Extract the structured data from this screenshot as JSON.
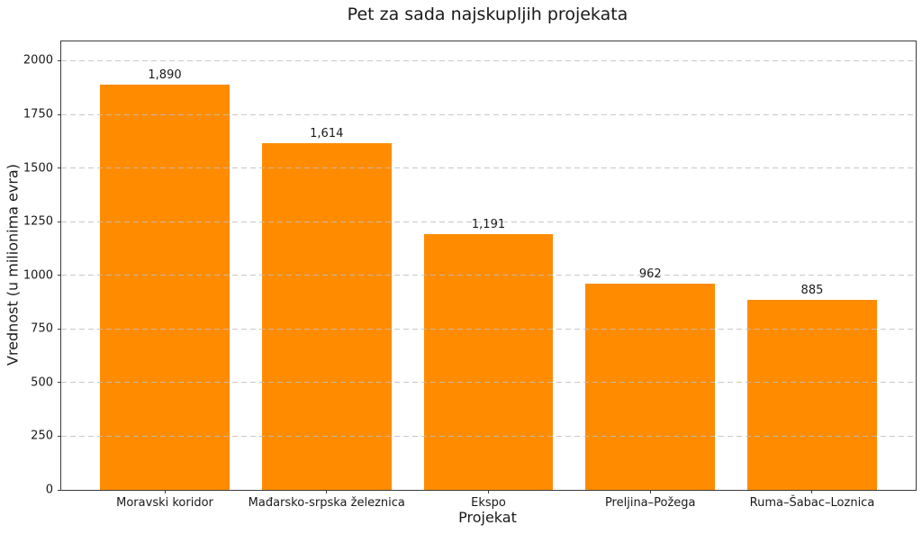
{
  "figure": {
    "title": "Pet za sada najskupljih projekata"
  },
  "chart_data": {
    "type": "bar",
    "title": "Pet za sada najskupljih projekata",
    "xlabel": "Projekat",
    "ylabel": "Vrednost (u milionima evra)",
    "categories": [
      "Moravski koridor",
      "Mađarsko-srpska železnica",
      "Ekspo",
      "Preljina–Požega",
      "Ruma–Šabac–Loznica"
    ],
    "values": [
      1890,
      1614,
      1191,
      962,
      885
    ],
    "value_labels": [
      "1,890",
      "1,614",
      "1,191",
      "962",
      "885"
    ],
    "yticks": [
      0,
      250,
      500,
      750,
      1000,
      1250,
      1500,
      1750,
      2000
    ],
    "ylim": [
      0,
      2090
    ],
    "xlim": [
      -0.64,
      4.64
    ],
    "bar_width_units": 0.8,
    "grid": true,
    "grid_axis": "y",
    "grid_style": "dashed",
    "grid_over_bars": true,
    "legend_position": "none",
    "bar_color": "#ff8c00",
    "grid_color": "#bebebe",
    "spine_color": "#3b3b3b",
    "text_color": "#1a1a1a"
  }
}
